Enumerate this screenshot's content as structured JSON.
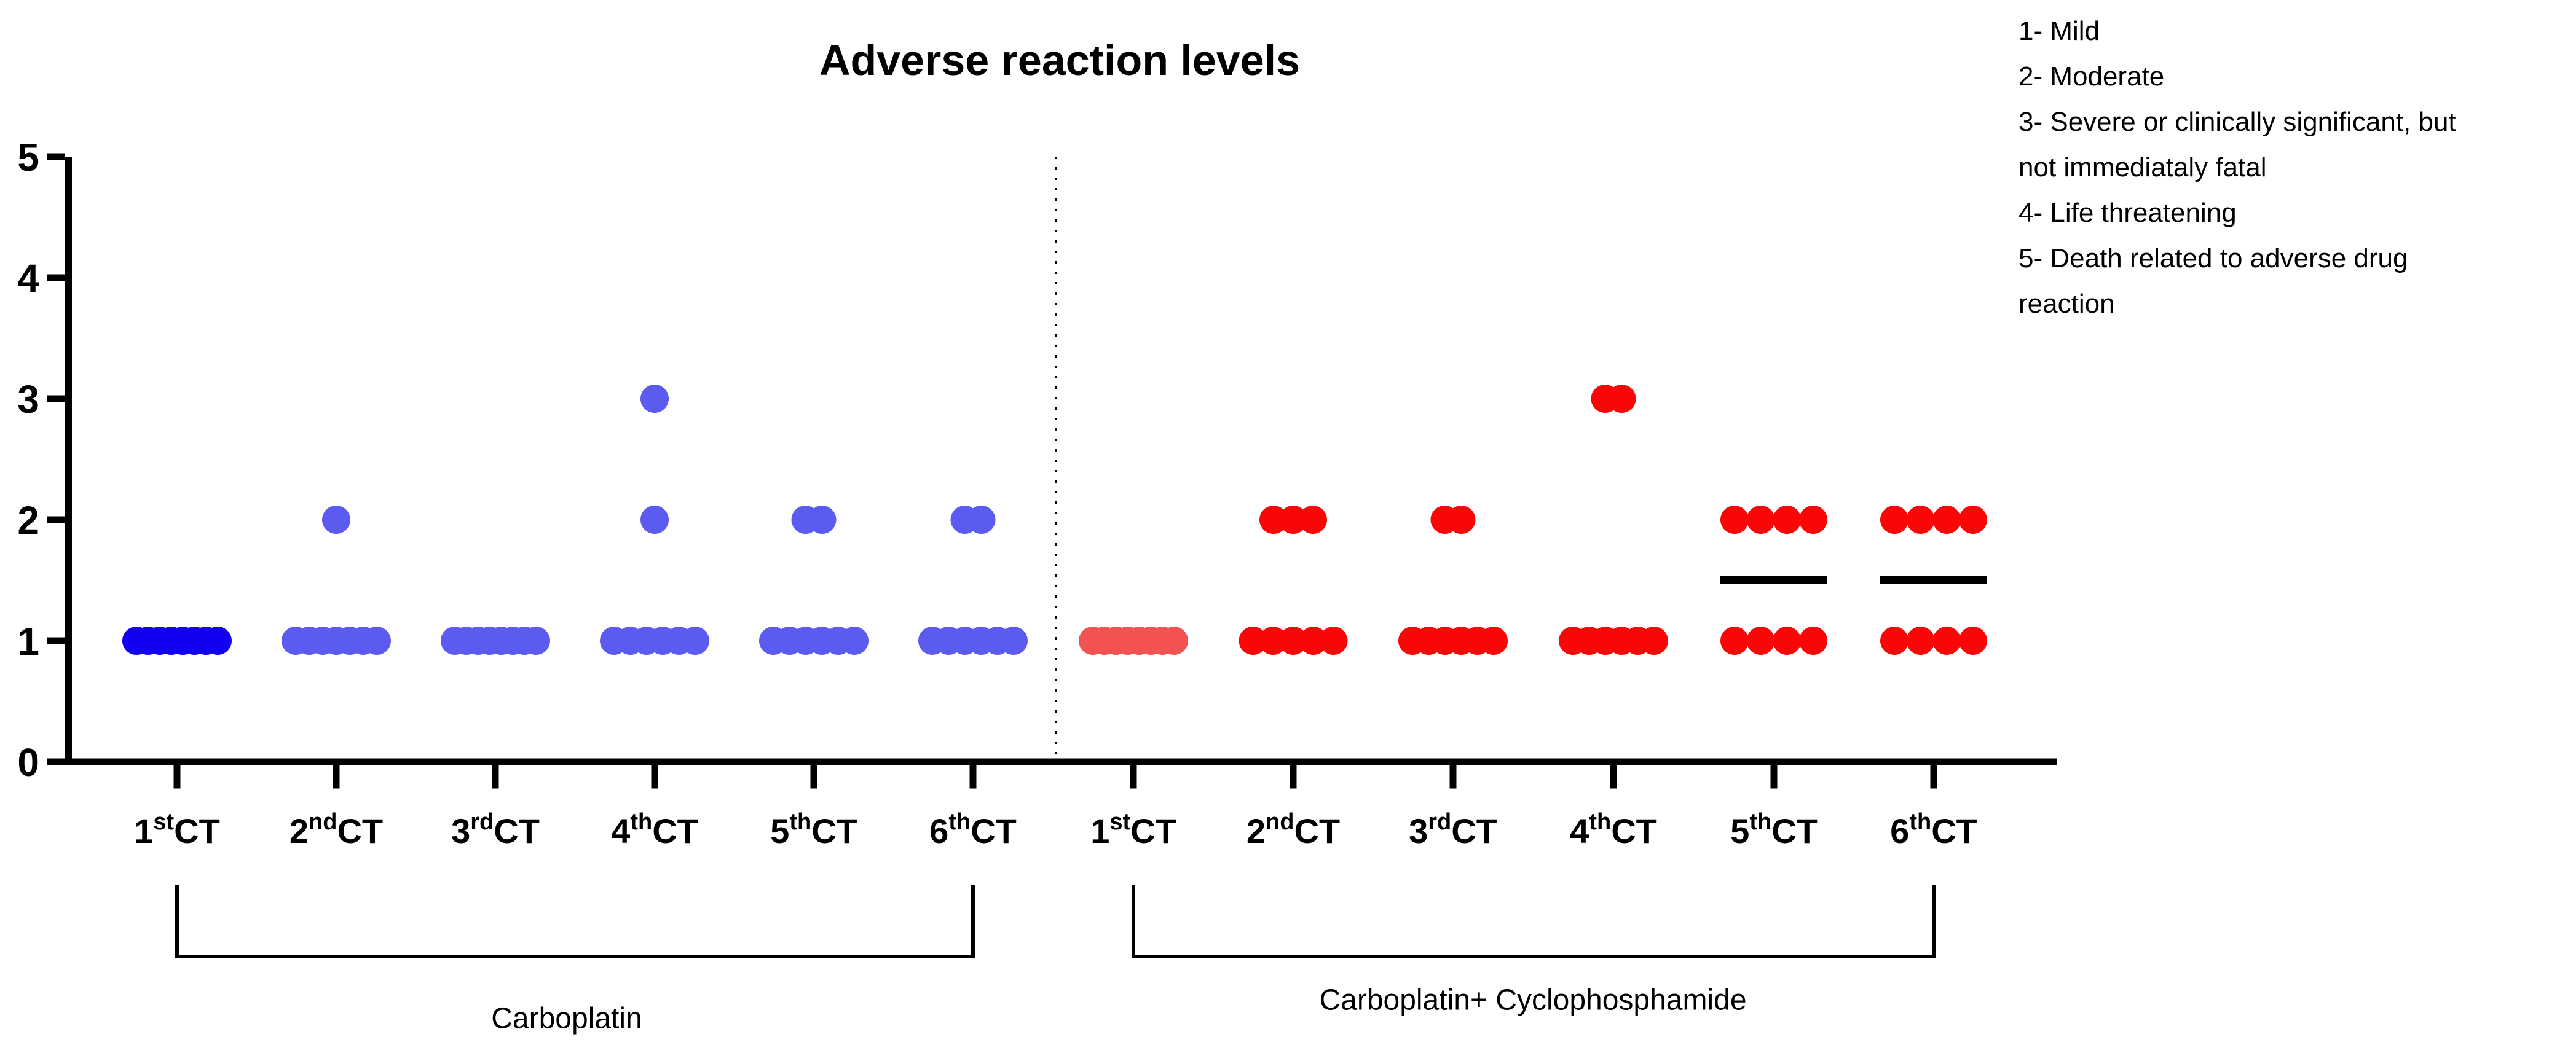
{
  "title": "Adverse reaction levels",
  "legend": {
    "lines": [
      "1- Mild",
      "2- Moderate",
      "3- Severe or clinically significant, but",
      "not immediataly fatal",
      "4- Life threatening",
      "5- Death related to adverse drug",
      "reaction"
    ]
  },
  "chart_data": {
    "type": "scatter",
    "title": "Adverse reaction levels",
    "ylim": [
      0,
      5
    ],
    "yticks": [
      "0",
      "1",
      "2",
      "3",
      "4",
      "5"
    ],
    "legend_position": "top-right",
    "severity_scale": [
      "1- Mild",
      "2- Moderate",
      "3- Severe or clinically significant, but not immediataly fatal",
      "4- Life threatening",
      "5- Death related to adverse drug reaction"
    ],
    "axis_color": "#000000",
    "median_line_color": "#000000",
    "divider_style": "dotted-vertical-line",
    "groups": [
      {
        "name": "Carboplatin",
        "dot_color": "#5C5BF0",
        "first_column_dot_color": "#1400F0",
        "columns": [
          {
            "label": "1st CT",
            "label_parts": [
              "1",
              "st",
              "CT"
            ],
            "counts_by_level": {
              "1": 8
            }
          },
          {
            "label": "2nd CT",
            "label_parts": [
              "2",
              "nd",
              "CT"
            ],
            "counts_by_level": {
              "1": 7,
              "2": 1
            }
          },
          {
            "label": "3rd CT",
            "label_parts": [
              "3",
              "rd",
              "CT"
            ],
            "counts_by_level": {
              "1": 8
            }
          },
          {
            "label": "4th CT",
            "label_parts": [
              "4",
              "th",
              "CT"
            ],
            "counts_by_level": {
              "1": 6,
              "2": 1,
              "3": 1
            }
          },
          {
            "label": "5th CT",
            "label_parts": [
              "5",
              "th",
              "CT"
            ],
            "counts_by_level": {
              "1": 6,
              "2": 2
            }
          },
          {
            "label": "6th CT",
            "label_parts": [
              "6",
              "th",
              "CT"
            ],
            "counts_by_level": {
              "1": 6,
              "2": 2
            }
          }
        ]
      },
      {
        "name": "Carboplatin+ Cyclophosphamide",
        "dot_color": "#FB0606",
        "first_column_dot_color": "#F25251",
        "columns": [
          {
            "label": "1st CT",
            "label_parts": [
              "1",
              "st",
              "CT"
            ],
            "counts_by_level": {
              "1": 8
            }
          },
          {
            "label": "2nd CT",
            "label_parts": [
              "2",
              "nd",
              "CT"
            ],
            "counts_by_level": {
              "1": 5,
              "2": 3
            }
          },
          {
            "label": "3rd CT",
            "label_parts": [
              "3",
              "rd",
              "CT"
            ],
            "counts_by_level": {
              "1": 6,
              "2": 2
            }
          },
          {
            "label": "4th CT",
            "label_parts": [
              "4",
              "th",
              "CT"
            ],
            "counts_by_level": {
              "1": 6,
              "3": 2
            }
          },
          {
            "label": "5th CT",
            "label_parts": [
              "5",
              "th",
              "CT"
            ],
            "counts_by_level": {
              "1": 4,
              "2": 4
            },
            "median_line": 1.5
          },
          {
            "label": "6th CT",
            "label_parts": [
              "6",
              "th",
              "CT"
            ],
            "counts_by_level": {
              "1": 4,
              "2": 4
            },
            "median_line": 1.5
          }
        ]
      }
    ]
  }
}
